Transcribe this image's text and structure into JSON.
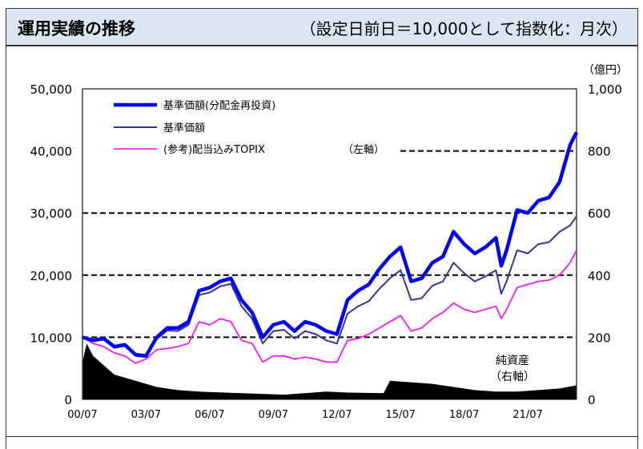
{
  "header": {
    "title": "運用実績の推移",
    "subtitle": "（設定日前日＝10,000として指数化：月次）"
  },
  "chart_data": {
    "type": "line",
    "right_axis_unit": "（億円）",
    "left_axis_note": "（左軸）",
    "net_assets_label": [
      "純資産",
      "（右軸）"
    ],
    "ylim": [
      0,
      50000
    ],
    "y2lim": [
      0,
      1000
    ],
    "yticks": [
      "0",
      "10,000",
      "20,000",
      "30,000",
      "40,000",
      "50,000"
    ],
    "y2ticks": [
      "0",
      "200",
      "400",
      "600",
      "800",
      "1,000"
    ],
    "xlim": [
      2000.5,
      2023.8
    ],
    "xticks": [
      {
        "x": 2000.5,
        "label": "00/07"
      },
      {
        "x": 2003.5,
        "label": "03/07"
      },
      {
        "x": 2006.5,
        "label": "06/07"
      },
      {
        "x": 2009.5,
        "label": "09/07"
      },
      {
        "x": 2012.5,
        "label": "12/07"
      },
      {
        "x": 2015.5,
        "label": "15/07"
      },
      {
        "x": 2018.5,
        "label": "18/07"
      },
      {
        "x": 2021.5,
        "label": "21/07"
      }
    ],
    "grid": "dashed horizontal",
    "legend_position": "top-left",
    "series": [
      {
        "name": "基準価額(分配金再投資)",
        "color": "#0000ff",
        "axis": "left",
        "x": [
          2000.5,
          2001,
          2001.5,
          2002,
          2002.5,
          2003,
          2003.5,
          2004,
          2004.5,
          2005,
          2005.5,
          2006,
          2006.5,
          2007,
          2007.5,
          2008,
          2008.5,
          2009,
          2009.5,
          2010,
          2010.5,
          2011,
          2011.5,
          2012,
          2012.5,
          2013,
          2013.5,
          2014,
          2014.5,
          2015,
          2015.5,
          2016,
          2016.5,
          2017,
          2017.5,
          2018,
          2018.5,
          2019,
          2019.5,
          2020,
          2020.25,
          2020.5,
          2021,
          2021.5,
          2022,
          2022.5,
          2023,
          2023.5,
          2023.8
        ],
        "y": [
          10000,
          9500,
          9800,
          8500,
          8800,
          7200,
          7000,
          10000,
          11500,
          11500,
          12500,
          17500,
          18000,
          19000,
          19500,
          16000,
          14000,
          10000,
          12000,
          12500,
          11000,
          12500,
          12000,
          11000,
          10500,
          16000,
          17500,
          18500,
          21000,
          23000,
          24500,
          19000,
          19500,
          22000,
          23000,
          27000,
          25000,
          23500,
          24500,
          26000,
          21500,
          24000,
          30500,
          30000,
          32000,
          32500,
          35000,
          41000,
          43000
        ]
      },
      {
        "name": "基準価額",
        "color": "#333399",
        "axis": "left",
        "x": [
          2000.5,
          2001,
          2001.5,
          2002,
          2002.5,
          2003,
          2003.5,
          2004,
          2004.5,
          2005,
          2005.5,
          2006,
          2006.5,
          2007,
          2007.5,
          2008,
          2008.5,
          2009,
          2009.5,
          2010,
          2010.5,
          2011,
          2011.5,
          2012,
          2012.5,
          2013,
          2013.5,
          2014,
          2014.5,
          2015,
          2015.5,
          2016,
          2016.5,
          2017,
          2017.5,
          2018,
          2018.5,
          2019,
          2019.5,
          2020,
          2020.25,
          2020.5,
          2021,
          2021.5,
          2022,
          2022.5,
          2023,
          2023.5,
          2023.8
        ],
        "y": [
          10000,
          9400,
          9600,
          8300,
          8600,
          7000,
          6800,
          9700,
          11100,
          11000,
          12000,
          16800,
          17200,
          18200,
          18600,
          15000,
          13000,
          9000,
          11000,
          11200,
          9800,
          11000,
          10500,
          9500,
          9000,
          13800,
          15000,
          15800,
          17800,
          19500,
          20800,
          16000,
          16300,
          18300,
          19000,
          22000,
          20300,
          19000,
          19800,
          20800,
          17000,
          19000,
          24000,
          23500,
          25000,
          25300,
          27000,
          28000,
          29500
        ]
      },
      {
        "name": "(参考)配当込みTOPIX",
        "color": "#ff00ff",
        "axis": "left",
        "x": [
          2000.5,
          2001,
          2001.5,
          2002,
          2002.5,
          2003,
          2003.5,
          2004,
          2004.5,
          2005,
          2005.5,
          2006,
          2006.5,
          2007,
          2007.5,
          2008,
          2008.5,
          2009,
          2009.5,
          2010,
          2010.5,
          2011,
          2011.5,
          2012,
          2012.5,
          2013,
          2013.5,
          2014,
          2014.5,
          2015,
          2015.5,
          2016,
          2016.5,
          2017,
          2017.5,
          2018,
          2018.5,
          2019,
          2019.5,
          2020,
          2020.25,
          2020.5,
          2021,
          2021.5,
          2022,
          2022.5,
          2023,
          2023.5,
          2023.8
        ],
        "y": [
          10000,
          9000,
          8500,
          7500,
          7000,
          5800,
          6500,
          8000,
          8200,
          8500,
          9000,
          12500,
          12000,
          13000,
          12500,
          9500,
          9000,
          6000,
          7000,
          7000,
          6500,
          6800,
          6500,
          6000,
          6000,
          9500,
          9800,
          10500,
          11500,
          12500,
          13500,
          11000,
          11500,
          13000,
          14000,
          15500,
          14500,
          14000,
          14500,
          15000,
          13000,
          14500,
          18000,
          18500,
          19000,
          19200,
          20000,
          22000,
          24000
        ]
      },
      {
        "name": "純資産",
        "color": "#000000",
        "axis": "right",
        "type": "area",
        "x": [
          2000.5,
          2000.7,
          2001,
          2001.5,
          2002,
          2003,
          2004,
          2005,
          2006,
          2008,
          2010,
          2012,
          2013,
          2014.7,
          2015,
          2016,
          2017,
          2018,
          2019,
          2020,
          2021,
          2022,
          2023,
          2023.8
        ],
        "y": [
          120,
          180,
          140,
          110,
          80,
          60,
          40,
          30,
          25,
          20,
          15,
          25,
          22,
          20,
          60,
          55,
          50,
          40,
          30,
          25,
          25,
          30,
          35,
          45
        ]
      }
    ]
  }
}
